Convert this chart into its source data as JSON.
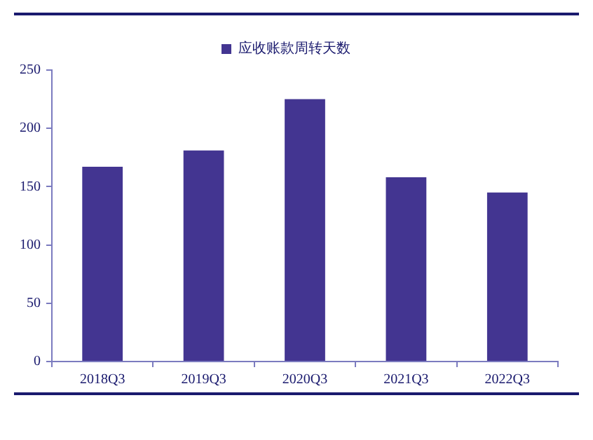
{
  "chart_data": {
    "type": "bar",
    "categories": [
      "2018Q3",
      "2019Q3",
      "2020Q3",
      "2021Q3",
      "2022Q3"
    ],
    "series": [
      {
        "name": "应收账款周转天数",
        "color": "#433591",
        "values": [
          167,
          181,
          225,
          158,
          145
        ]
      }
    ],
    "ylim": [
      0,
      250
    ],
    "yticks": [
      0,
      50,
      100,
      150,
      200,
      250
    ],
    "grid": false,
    "legend": "top"
  }
}
